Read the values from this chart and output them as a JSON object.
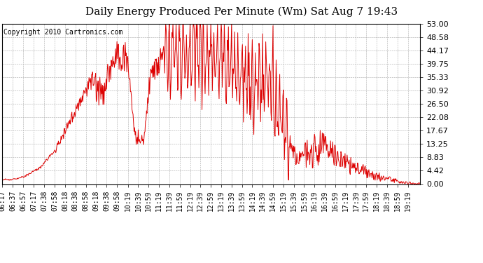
{
  "title": "Daily Energy Produced Per Minute (Wm) Sat Aug 7 19:43",
  "copyright": "Copyright 2010 Cartronics.com",
  "line_color": "#dd0000",
  "background_color": "#ffffff",
  "plot_bg_color": "#ffffff",
  "grid_color": "#aaaaaa",
  "ylim": [
    0.0,
    53.0
  ],
  "yticks": [
    0.0,
    4.42,
    8.83,
    13.25,
    17.67,
    22.08,
    26.5,
    30.92,
    35.33,
    39.75,
    44.17,
    48.58,
    53.0
  ],
  "xtick_labels": [
    "06:17",
    "06:37",
    "06:57",
    "07:17",
    "07:38",
    "07:58",
    "08:18",
    "08:38",
    "08:58",
    "09:18",
    "09:38",
    "09:58",
    "10:19",
    "10:39",
    "10:59",
    "11:19",
    "11:39",
    "11:59",
    "12:19",
    "12:39",
    "12:59",
    "13:19",
    "13:39",
    "13:59",
    "14:19",
    "14:39",
    "14:59",
    "15:19",
    "15:39",
    "15:59",
    "16:19",
    "16:39",
    "16:59",
    "17:19",
    "17:39",
    "17:59",
    "18:19",
    "18:39",
    "18:59",
    "19:19"
  ],
  "title_fontsize": 11,
  "copyright_fontsize": 7,
  "tick_fontsize": 7,
  "ytick_fontsize": 8
}
